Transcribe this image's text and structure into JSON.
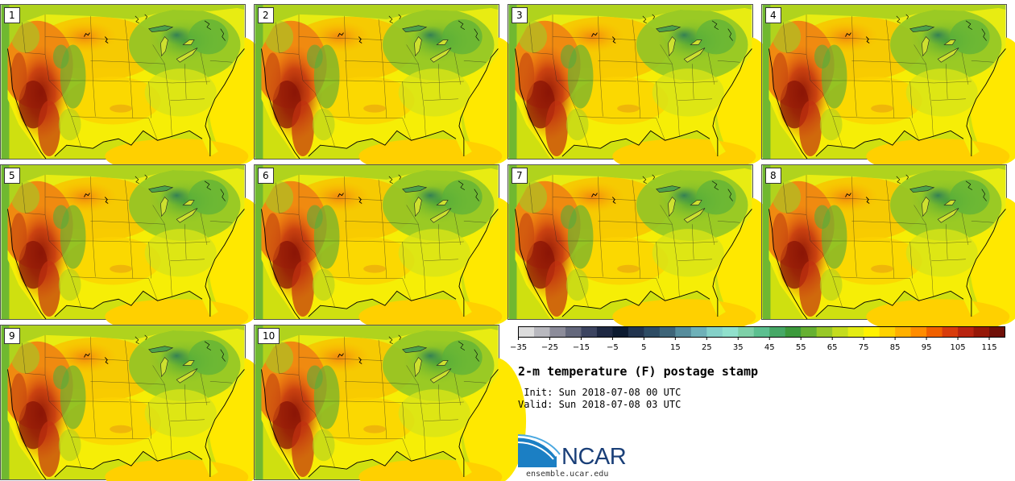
{
  "map": {
    "title": "2-m temperature (F) postage stamp",
    "init": " Init: Sun 2018-07-08 00 UTC",
    "valid": "Valid: Sun 2018-07-08 03 UTC",
    "member_labels": [
      "1",
      "2",
      "3",
      "4",
      "5",
      "6",
      "7",
      "8",
      "9",
      "10"
    ]
  },
  "colorbar": {
    "units": "F",
    "min": -35,
    "max": 120,
    "step": 5,
    "tick_labels": [
      "−35",
      "−25",
      "−15",
      "−5",
      "5",
      "15",
      "25",
      "35",
      "45",
      "55",
      "65",
      "75",
      "85",
      "95",
      "105",
      "115"
    ],
    "colors": [
      "#dcdcdc",
      "#b8b8be",
      "#8c8c9a",
      "#64687c",
      "#3c4460",
      "#1e2842",
      "#0c1a30",
      "#22344e",
      "#2e4c64",
      "#3e6478",
      "#568c9c",
      "#6eb0b8",
      "#84d0c8",
      "#90e0cc",
      "#7ed0a8",
      "#5cc090",
      "#46a866",
      "#3c9a3c",
      "#66b032",
      "#98c828",
      "#c4dc1e",
      "#e4ec14",
      "#fff200",
      "#ffd200",
      "#ffb000",
      "#ff8c00",
      "#f06000",
      "#d83c0c",
      "#b82410",
      "#961808",
      "#701008"
    ]
  },
  "logo": {
    "text": "NCAR",
    "url": "ensemble.ucar.edu"
  }
}
